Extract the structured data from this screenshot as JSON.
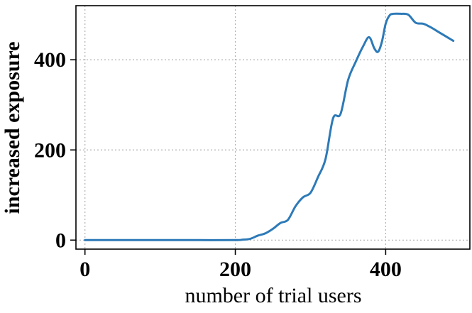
{
  "chart_data": {
    "type": "line",
    "title": "",
    "xlabel": "number of trial users",
    "ylabel": "increased exposure",
    "xlim": [
      -12,
      512
    ],
    "ylim": [
      -20,
      520
    ],
    "xticks": [
      0,
      200,
      400
    ],
    "yticks": [
      0,
      200,
      400
    ],
    "grid": true,
    "series": [
      {
        "color": "#2d7ab8",
        "x": [
          0,
          50,
          100,
          150,
          200,
          210,
          220,
          230,
          240,
          250,
          260,
          270,
          280,
          290,
          300,
          310,
          320,
          330,
          340,
          350,
          360,
          370,
          378,
          385,
          390,
          395,
          400,
          405,
          410,
          420,
          430,
          440,
          450,
          460,
          470,
          480,
          490
        ],
        "y": [
          0,
          0,
          0,
          0,
          0,
          1,
          3,
          10,
          15,
          25,
          38,
          45,
          75,
          95,
          105,
          140,
          180,
          270,
          280,
          355,
          395,
          430,
          450,
          425,
          418,
          440,
          480,
          498,
          502,
          502,
          500,
          482,
          480,
          472,
          462,
          452,
          442
        ]
      }
    ]
  }
}
